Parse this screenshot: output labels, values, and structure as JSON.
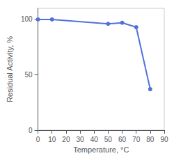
{
  "chart_data": {
    "type": "line",
    "x": [
      0,
      10,
      50,
      60,
      70,
      80
    ],
    "values": [
      100,
      100,
      96,
      97,
      93,
      37
    ],
    "marker": "circle",
    "xlabel": "Temperature, °C",
    "ylabel": "Residual Activity, %",
    "xlim": [
      0,
      90
    ],
    "ylim": [
      0,
      110
    ],
    "xticks": [
      0,
      10,
      20,
      30,
      40,
      50,
      60,
      70,
      80,
      90
    ],
    "yticks": [
      0,
      50,
      100
    ],
    "grid": false
  }
}
